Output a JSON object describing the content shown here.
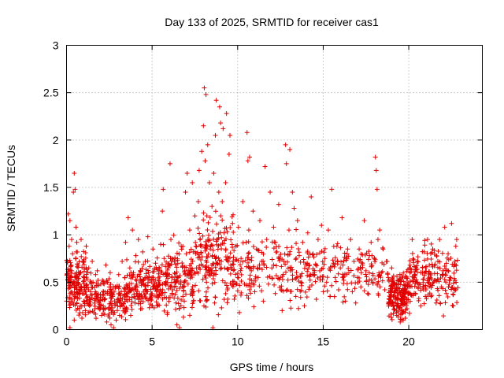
{
  "chart_data": {
    "type": "scatter",
    "title": "Day 133 of 2025, SRMTID for receiver cas1",
    "xlabel": "GPS time / hours",
    "ylabel": "SRMTID / TECUs",
    "xlim": [
      0,
      24.3
    ],
    "ylim": [
      0,
      3
    ],
    "xticks": [
      0,
      5,
      10,
      15,
      20
    ],
    "xtick_labels": [
      "0",
      "5",
      "10",
      "15",
      "20"
    ],
    "yticks": [
      0,
      0.5,
      1,
      1.5,
      2,
      2.5,
      3
    ],
    "ytick_labels": [
      "0",
      "0.5",
      "1",
      "1.5",
      "2",
      "2.5",
      "3"
    ],
    "grid": true,
    "marker": "+",
    "color": "#e00000",
    "series": [
      {
        "name": "SRMTID",
        "points": [
          [
            0.0,
            0.3
          ],
          [
            0.05,
            0.72
          ],
          [
            0.1,
            1.22
          ],
          [
            0.1,
            0.55
          ],
          [
            0.15,
            0.88
          ],
          [
            0.2,
            0.02
          ],
          [
            0.2,
            1.15
          ],
          [
            0.25,
            0.45
          ],
          [
            0.3,
            0.95
          ],
          [
            0.3,
            0.62
          ],
          [
            0.35,
            0.8
          ],
          [
            0.4,
            1.45
          ],
          [
            0.45,
            1.65
          ],
          [
            0.45,
            0.1
          ],
          [
            0.5,
            1.48
          ],
          [
            0.5,
            0.35
          ],
          [
            0.55,
            1.08
          ],
          [
            0.6,
            0.92
          ],
          [
            0.6,
            0.28
          ],
          [
            0.7,
            0.6
          ],
          [
            0.75,
            0.22
          ],
          [
            0.8,
            0.42
          ],
          [
            0.85,
            0.95
          ],
          [
            0.9,
            0.12
          ],
          [
            0.95,
            0.72
          ],
          [
            1.0,
            0.3
          ],
          [
            1.05,
            0.55
          ],
          [
            1.1,
            0.2
          ],
          [
            1.15,
            0.88
          ],
          [
            1.2,
            0.45
          ],
          [
            1.3,
            0.65
          ],
          [
            1.35,
            0.25
          ],
          [
            1.4,
            0.4
          ],
          [
            1.5,
            0.72
          ],
          [
            1.55,
            0.5
          ],
          [
            1.6,
            0.18
          ],
          [
            1.7,
            0.58
          ],
          [
            1.75,
            0.35
          ],
          [
            1.8,
            0.62
          ],
          [
            1.9,
            0.28
          ],
          [
            2.0,
            0.48
          ],
          [
            2.05,
            0.15
          ],
          [
            2.1,
            0.52
          ],
          [
            2.2,
            0.32
          ],
          [
            2.3,
            0.68
          ],
          [
            2.35,
            0.08
          ],
          [
            2.4,
            0.4
          ],
          [
            2.5,
            0.22
          ],
          [
            2.55,
            0.6
          ],
          [
            2.6,
            0.05
          ],
          [
            2.7,
            0.35
          ],
          [
            2.75,
            0.02
          ],
          [
            2.8,
            0.18
          ],
          [
            2.85,
            0.45
          ],
          [
            2.9,
            0.1
          ],
          [
            3.0,
            0.3
          ],
          [
            3.05,
            0.58
          ],
          [
            3.1,
            0.15
          ],
          [
            3.2,
            0.4
          ],
          [
            3.25,
            0.72
          ],
          [
            3.3,
            0.25
          ],
          [
            3.4,
            0.55
          ],
          [
            3.45,
            0.92
          ],
          [
            3.5,
            0.38
          ],
          [
            3.6,
            1.18
          ],
          [
            3.7,
            0.65
          ],
          [
            3.75,
            0.15
          ],
          [
            3.8,
            0.42
          ],
          [
            3.85,
            1.05
          ],
          [
            3.9,
            0.58
          ],
          [
            4.0,
            0.28
          ],
          [
            4.05,
            0.78
          ],
          [
            4.1,
            0.48
          ],
          [
            4.2,
            0.95
          ],
          [
            4.25,
            0.35
          ],
          [
            4.3,
            0.62
          ],
          [
            4.4,
            0.22
          ],
          [
            4.45,
            0.82
          ],
          [
            4.5,
            0.52
          ],
          [
            4.6,
            0.72
          ],
          [
            4.7,
            0.4
          ],
          [
            4.75,
            0.98
          ],
          [
            4.8,
            0.6
          ],
          [
            4.9,
            0.32
          ],
          [
            5.0,
            0.55
          ],
          [
            5.05,
            0.85
          ],
          [
            5.1,
            0.45
          ],
          [
            5.2,
            0.7
          ],
          [
            5.3,
            0.25
          ],
          [
            5.4,
            0.62
          ],
          [
            5.5,
            0.9
          ],
          [
            5.55,
            0.38
          ],
          [
            5.6,
            1.25
          ],
          [
            5.65,
            1.48
          ],
          [
            5.7,
            0.75
          ],
          [
            5.8,
            0.5
          ],
          [
            5.9,
            0.18
          ],
          [
            6.0,
            0.68
          ],
          [
            6.05,
            1.75
          ],
          [
            6.1,
            0.95
          ],
          [
            6.2,
            0.42
          ],
          [
            6.3,
            0.72
          ],
          [
            6.4,
            0.28
          ],
          [
            6.45,
            0.05
          ],
          [
            6.5,
            0.55
          ],
          [
            6.6,
            0.02
          ],
          [
            6.7,
            0.88
          ],
          [
            6.8,
            0.35
          ],
          [
            6.9,
            0.62
          ],
          [
            6.95,
            1.45
          ],
          [
            7.0,
            0.8
          ],
          [
            7.05,
            1.65
          ],
          [
            7.1,
            0.48
          ],
          [
            7.2,
            1.05
          ],
          [
            7.3,
            0.58
          ],
          [
            7.35,
            1.55
          ],
          [
            7.4,
            0.82
          ],
          [
            7.5,
            1.2
          ],
          [
            7.6,
            0.65
          ],
          [
            7.7,
            1.35
          ],
          [
            7.75,
            1.68
          ],
          [
            7.8,
            0.95
          ],
          [
            7.9,
            1.88
          ],
          [
            8.0,
            2.15
          ],
          [
            8.05,
            2.55
          ],
          [
            8.1,
            1.78
          ],
          [
            8.15,
            2.48
          ],
          [
            8.2,
            1.2
          ],
          [
            8.25,
            1.95
          ],
          [
            8.3,
            0.62
          ],
          [
            8.35,
            1.55
          ],
          [
            8.4,
            0.85
          ],
          [
            8.5,
            1.3
          ],
          [
            8.55,
            0.02
          ],
          [
            8.6,
            1.65
          ],
          [
            8.65,
            0.28
          ],
          [
            8.7,
            2.05
          ],
          [
            8.75,
            2.42
          ],
          [
            8.8,
            0.95
          ],
          [
            8.9,
            1.45
          ],
          [
            8.95,
            2.35
          ],
          [
            9.0,
            2.18
          ],
          [
            9.05,
            0.72
          ],
          [
            9.1,
            1.35
          ],
          [
            9.15,
            2.12
          ],
          [
            9.2,
            1.02
          ],
          [
            9.3,
            1.55
          ],
          [
            9.35,
            2.28
          ],
          [
            9.4,
            0.42
          ],
          [
            9.5,
            1.85
          ],
          [
            9.55,
            2.05
          ],
          [
            9.6,
            0.68
          ],
          [
            9.7,
            1.12
          ],
          [
            9.8,
            0.32
          ],
          [
            9.9,
            0.88
          ],
          [
            10.0,
            0.55
          ],
          [
            10.05,
            1.08
          ],
          [
            10.1,
            0.18
          ],
          [
            10.2,
            0.75
          ],
          [
            10.3,
            1.35
          ],
          [
            10.4,
            0.48
          ],
          [
            10.5,
            0.92
          ],
          [
            10.55,
            2.08
          ],
          [
            10.6,
            1.78
          ],
          [
            10.65,
            1.05
          ],
          [
            10.7,
            1.82
          ],
          [
            10.8,
            0.62
          ],
          [
            10.9,
            1.25
          ],
          [
            11.0,
            0.4
          ],
          [
            11.1,
            0.85
          ],
          [
            11.2,
            0.55
          ],
          [
            11.3,
            1.15
          ],
          [
            11.4,
            0.72
          ],
          [
            11.5,
            0.3
          ],
          [
            11.6,
            1.72
          ],
          [
            11.7,
            0.95
          ],
          [
            11.8,
            0.48
          ],
          [
            11.9,
            1.45
          ],
          [
            12.0,
            0.65
          ],
          [
            12.1,
            1.08
          ],
          [
            12.2,
            0.38
          ],
          [
            12.3,
            0.82
          ],
          [
            12.4,
            1.32
          ],
          [
            12.5,
            0.55
          ],
          [
            12.6,
            0.2
          ],
          [
            12.7,
            0.72
          ],
          [
            12.8,
            1.95
          ],
          [
            12.85,
            1.75
          ],
          [
            12.9,
            0.42
          ],
          [
            13.0,
            1.05
          ],
          [
            13.05,
            1.9
          ],
          [
            13.1,
            0.62
          ],
          [
            13.2,
            1.45
          ],
          [
            13.3,
            1.28
          ],
          [
            13.4,
            0.35
          ],
          [
            13.5,
            1.15
          ],
          [
            13.6,
            0.78
          ],
          [
            13.7,
            0.5
          ],
          [
            13.8,
            0.92
          ],
          [
            13.9,
            0.25
          ],
          [
            14.0,
            0.68
          ],
          [
            14.1,
            1.02
          ],
          [
            14.2,
            0.45
          ],
          [
            14.3,
            1.4
          ],
          [
            14.4,
            0.8
          ],
          [
            14.5,
            0.58
          ],
          [
            14.6,
            0.32
          ],
          [
            14.7,
            0.95
          ],
          [
            14.8,
            0.62
          ],
          [
            14.9,
            1.1
          ],
          [
            15.0,
            0.4
          ],
          [
            15.1,
            0.75
          ],
          [
            15.2,
            0.5
          ],
          [
            15.3,
            1.05
          ],
          [
            15.4,
            0.35
          ],
          [
            15.5,
            1.48
          ],
          [
            15.6,
            0.7
          ],
          [
            15.7,
            0.55
          ],
          [
            15.8,
            0.88
          ],
          [
            15.9,
            0.42
          ],
          [
            16.0,
            0.65
          ],
          [
            16.1,
            1.18
          ],
          [
            16.2,
            0.52
          ],
          [
            16.3,
            0.3
          ],
          [
            16.4,
            0.8
          ],
          [
            16.5,
            0.6
          ],
          [
            16.6,
            0.95
          ],
          [
            16.7,
            0.4
          ],
          [
            16.8,
            0.72
          ],
          [
            16.9,
            0.28
          ],
          [
            17.0,
            0.55
          ],
          [
            17.1,
            0.85
          ],
          [
            17.2,
            0.45
          ],
          [
            17.3,
            0.68
          ],
          [
            17.4,
            1.15
          ],
          [
            17.5,
            0.62
          ],
          [
            17.6,
            0.38
          ],
          [
            17.7,
            0.78
          ],
          [
            17.8,
            0.92
          ],
          [
            17.9,
            0.5
          ],
          [
            18.0,
            0.75
          ],
          [
            18.05,
            1.82
          ],
          [
            18.1,
            1.68
          ],
          [
            18.15,
            1.48
          ],
          [
            18.2,
            0.95
          ],
          [
            18.3,
            1.05
          ],
          [
            18.4,
            0.6
          ],
          [
            18.5,
            0.85
          ],
          [
            18.6,
            0.42
          ],
          [
            18.7,
            0.72
          ],
          [
            18.8,
            0.55
          ],
          [
            18.9,
            0.35
          ],
          [
            19.0,
            0.65
          ],
          [
            19.1,
            0.5
          ],
          [
            19.2,
            0.32
          ],
          [
            19.3,
            0.15
          ],
          [
            19.4,
            0.25
          ],
          [
            19.5,
            0.08
          ],
          [
            19.6,
            0.2
          ],
          [
            19.7,
            0.35
          ],
          [
            19.8,
            0.12
          ],
          [
            19.9,
            0.28
          ],
          [
            20.0,
            0.45
          ],
          [
            20.1,
            0.65
          ],
          [
            20.2,
            0.95
          ],
          [
            20.3,
            0.55
          ],
          [
            20.4,
            0.38
          ],
          [
            20.5,
            0.72
          ],
          [
            20.6,
            0.48
          ],
          [
            20.7,
            0.25
          ],
          [
            20.8,
            0.6
          ],
          [
            20.9,
            0.82
          ],
          [
            21.0,
            0.42
          ],
          [
            21.1,
            0.95
          ],
          [
            21.2,
            0.68
          ],
          [
            21.3,
            0.35
          ],
          [
            21.4,
            0.85
          ],
          [
            21.5,
            0.52
          ],
          [
            21.6,
            0.28
          ],
          [
            21.7,
            0.72
          ],
          [
            21.8,
            0.95
          ],
          [
            21.9,
            0.45
          ],
          [
            22.0,
            0.62
          ],
          [
            22.1,
            1.08
          ],
          [
            22.2,
            0.38
          ],
          [
            22.3,
            0.8
          ],
          [
            22.4,
            0.55
          ],
          [
            22.5,
            1.12
          ],
          [
            22.6,
            0.25
          ],
          [
            22.7,
            0.72
          ],
          [
            22.75,
            0.88
          ],
          [
            22.8,
            0.95
          ]
        ]
      }
    ],
    "density": {
      "segments": [
        {
          "x": [
            0.0,
            1.2
          ],
          "lo": 0.05,
          "hi": 0.95
        },
        {
          "x": [
            1.2,
            3.5
          ],
          "lo": 0.02,
          "hi": 0.65
        },
        {
          "x": [
            3.5,
            5.5
          ],
          "lo": 0.05,
          "hi": 0.85
        },
        {
          "x": [
            5.5,
            7.5
          ],
          "lo": 0.02,
          "hi": 1.05
        },
        {
          "x": [
            7.5,
            9.8
          ],
          "lo": 0.05,
          "hi": 1.45
        },
        {
          "x": [
            9.8,
            14.0
          ],
          "lo": 0.15,
          "hi": 1.15
        },
        {
          "x": [
            14.0,
            18.8
          ],
          "lo": 0.25,
          "hi": 1.0
        },
        {
          "x": [
            18.8,
            20.0
          ],
          "lo": 0.02,
          "hi": 0.7
        },
        {
          "x": [
            20.0,
            22.9
          ],
          "lo": 0.1,
          "hi": 1.0
        }
      ],
      "count": 1500
    }
  }
}
